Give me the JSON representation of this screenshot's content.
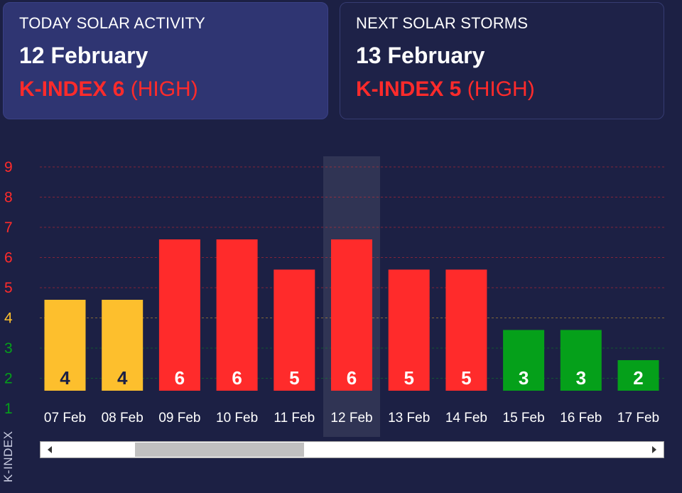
{
  "today": {
    "heading": "TODAY SOLAR ACTIVITY",
    "date": "12 February",
    "kindex": "K-INDEX 6",
    "level": "(HIGH)"
  },
  "next": {
    "heading": "NEXT SOLAR STORMS",
    "date": "13 February",
    "kindex": "K-INDEX 5",
    "level": "(HIGH)"
  },
  "colors": {
    "high": "#ff2b2b",
    "moderate": "#fdbf2d",
    "low": "#05a01a",
    "background": "#1c2044"
  },
  "chart_data": {
    "type": "bar",
    "ylabel": "K-INDEX",
    "ylim": [
      1,
      9
    ],
    "yticks": [
      1,
      2,
      3,
      4,
      5,
      6,
      7,
      8,
      9
    ],
    "categories": [
      "07 Feb",
      "08 Feb",
      "09 Feb",
      "10 Feb",
      "11 Feb",
      "12 Feb",
      "13 Feb",
      "14 Feb",
      "15 Feb",
      "16 Feb",
      "17 Feb"
    ],
    "values": [
      4,
      4,
      6,
      6,
      5,
      6,
      5,
      5,
      3,
      3,
      2
    ],
    "highlighted": "12 Feb",
    "grid": true
  },
  "scrollbar": {
    "left_icon": "arrow-left-icon",
    "right_icon": "arrow-right-icon"
  }
}
